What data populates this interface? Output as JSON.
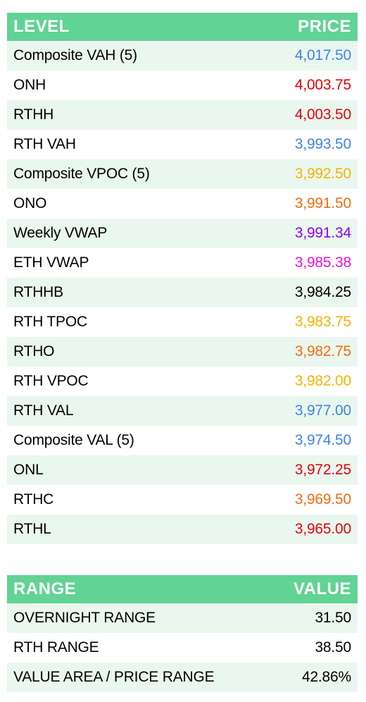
{
  "levels_table": {
    "header": {
      "level": "LEVEL",
      "price": "PRICE"
    },
    "rows": [
      {
        "level": "Composite VAH (5)",
        "price": "4,017.50",
        "color": "#3f82e8"
      },
      {
        "level": "ONH",
        "price": "4,003.75",
        "color": "#e8000b"
      },
      {
        "level": "RTHH",
        "price": "4,003.50",
        "color": "#e8000b"
      },
      {
        "level": "RTH VAH",
        "price": "3,993.50",
        "color": "#3f82e8"
      },
      {
        "level": "Composite VPOC (5)",
        "price": "3,992.50",
        "color": "#f2b500"
      },
      {
        "level": "ONO",
        "price": "3,991.50",
        "color": "#f26b10"
      },
      {
        "level": "Weekly VWAP",
        "price": "3,991.34",
        "color": "#8f00f5"
      },
      {
        "level": "ETH VWAP",
        "price": "3,985.38",
        "color": "#f010e0"
      },
      {
        "level": "RTHHB",
        "price": "3,984.25",
        "color": "#000000"
      },
      {
        "level": "RTH TPOC",
        "price": "3,983.75",
        "color": "#f2b500"
      },
      {
        "level": "RTHO",
        "price": "3,982.75",
        "color": "#f26b10"
      },
      {
        "level": "RTH VPOC",
        "price": "3,982.00",
        "color": "#f2b500"
      },
      {
        "level": "RTH VAL",
        "price": "3,977.00",
        "color": "#3f82e8"
      },
      {
        "level": "Composite VAL (5)",
        "price": "3,974.50",
        "color": "#3f82e8"
      },
      {
        "level": "ONL",
        "price": "3,972.25",
        "color": "#e8000b"
      },
      {
        "level": "RTHC",
        "price": "3,969.50",
        "color": "#f26b10"
      },
      {
        "level": "RTHL",
        "price": "3,965.00",
        "color": "#e8000b"
      }
    ]
  },
  "range_table": {
    "header": {
      "range": "RANGE",
      "value": "VALUE"
    },
    "rows": [
      {
        "range": "OVERNIGHT RANGE",
        "value": "31.50",
        "color": "#000000"
      },
      {
        "range": "RTH RANGE",
        "value": "38.50",
        "color": "#000000"
      },
      {
        "range": "VALUE AREA / PRICE RANGE",
        "value": "42.86%",
        "color": "#000000"
      }
    ]
  },
  "colors": {
    "header_bg": "#61d394",
    "header_text": "#ffffff",
    "row_alt_bg": "#eaf7ee",
    "row_bg": "#ffffff"
  }
}
